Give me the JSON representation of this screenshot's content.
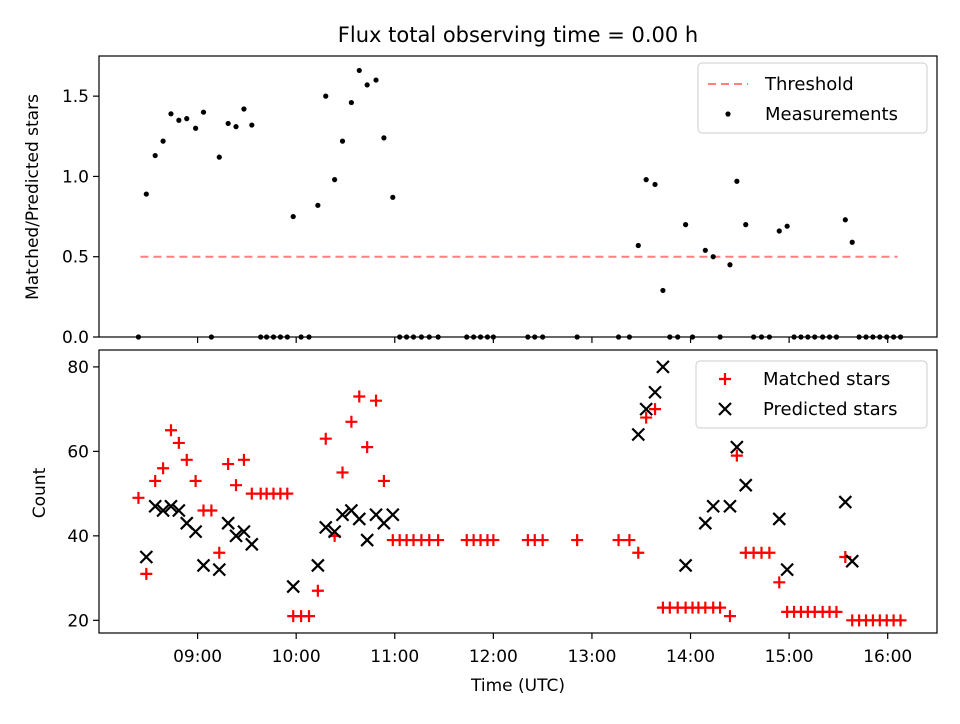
{
  "figure": {
    "title": "Flux total observing time = 0.00 h"
  },
  "colors": {
    "threshold": "#ff7f7f",
    "measurements": "#000000",
    "matched": "#ff0000",
    "predicted": "#000000"
  },
  "chart_data": [
    {
      "type": "scatter",
      "ylabel": "Matched/Predicted stars",
      "xlabel": "",
      "x_unit": "time (UTC, decimal hours)",
      "xlim": [
        8.0,
        16.5
      ],
      "ylim": [
        0.0,
        1.75
      ],
      "yticks": [
        0.0,
        0.5,
        1.0,
        1.5
      ],
      "ytick_labels": [
        "0.0",
        "0.5",
        "1.0",
        "1.5"
      ],
      "xticks": [
        9,
        10,
        11,
        12,
        13,
        14,
        15,
        16
      ],
      "grid": false,
      "legend": {
        "placement": "top-right",
        "entries": [
          "Threshold",
          "Measurements"
        ]
      },
      "series": [
        {
          "name": "Threshold",
          "style": "dashed-line",
          "x": [
            8.42,
            16.1
          ],
          "y": [
            0.5,
            0.5
          ]
        },
        {
          "name": "Measurements",
          "style": "dot",
          "x": [
            8.4,
            8.48,
            8.57,
            8.65,
            8.73,
            8.81,
            8.89,
            8.98,
            9.06,
            9.14,
            9.22,
            9.31,
            9.39,
            9.47,
            9.55,
            9.64,
            9.7,
            9.77,
            9.84,
            9.91,
            9.97,
            10.05,
            10.13,
            10.22,
            10.3,
            10.39,
            10.47,
            10.56,
            10.64,
            10.72,
            10.81,
            10.89,
            10.98,
            11.05,
            11.12,
            11.19,
            11.27,
            11.35,
            11.44,
            11.73,
            11.8,
            11.87,
            11.94,
            12.0,
            12.35,
            12.42,
            12.5,
            12.85,
            13.27,
            13.38,
            13.47,
            13.55,
            13.64,
            13.72,
            13.79,
            13.87,
            13.95,
            14.02,
            14.15,
            14.23,
            14.3,
            14.4,
            14.47,
            14.56,
            14.64,
            14.72,
            14.8,
            14.9,
            14.98,
            15.05,
            15.12,
            15.19,
            15.26,
            15.34,
            15.41,
            15.48,
            15.57,
            15.64,
            15.71,
            15.78,
            15.85,
            15.92,
            15.99,
            16.06,
            16.13
          ],
          "y": [
            0.0,
            0.89,
            1.13,
            1.22,
            1.39,
            1.35,
            1.36,
            1.3,
            1.4,
            0.0,
            1.12,
            1.33,
            1.31,
            1.42,
            1.32,
            0.0,
            0.0,
            0.0,
            0.0,
            0.0,
            0.75,
            0.0,
            0.0,
            0.82,
            1.5,
            0.98,
            1.22,
            1.46,
            1.66,
            1.57,
            1.6,
            1.24,
            0.87,
            0.0,
            0.0,
            0.0,
            0.0,
            0.0,
            0.0,
            0.0,
            0.0,
            0.0,
            0.0,
            0.0,
            0.0,
            0.0,
            0.0,
            0.0,
            0.0,
            0.0,
            0.57,
            0.98,
            0.95,
            0.29,
            0.0,
            0.0,
            0.7,
            0.0,
            0.54,
            0.5,
            0.0,
            0.45,
            0.97,
            0.7,
            0.0,
            0.0,
            0.0,
            0.66,
            0.69,
            0.0,
            0.0,
            0.0,
            0.0,
            0.0,
            0.0,
            0.0,
            0.73,
            0.59,
            0.0,
            0.0,
            0.0,
            0.0,
            0.0,
            0.0,
            0.0
          ]
        }
      ]
    },
    {
      "type": "scatter",
      "ylabel": "Count",
      "xlabel": "Time (UTC)",
      "x_unit": "time (UTC, decimal hours)",
      "xlim": [
        8.0,
        16.5
      ],
      "ylim": [
        17,
        84
      ],
      "yticks": [
        20,
        40,
        60,
        80
      ],
      "ytick_labels": [
        "20",
        "40",
        "60",
        "80"
      ],
      "xticks": [
        9,
        10,
        11,
        12,
        13,
        14,
        15,
        16
      ],
      "xtick_labels": [
        "09:00",
        "10:00",
        "11:00",
        "12:00",
        "13:00",
        "14:00",
        "15:00",
        "16:00"
      ],
      "grid": false,
      "legend": {
        "placement": "top-right",
        "entries": [
          "Matched stars",
          "Predicted stars"
        ]
      },
      "series": [
        {
          "name": "Matched stars",
          "style": "plus",
          "x": [
            8.4,
            8.48,
            8.57,
            8.65,
            8.73,
            8.81,
            8.89,
            8.98,
            9.06,
            9.14,
            9.22,
            9.31,
            9.39,
            9.47,
            9.55,
            9.64,
            9.7,
            9.77,
            9.84,
            9.91,
            9.97,
            10.05,
            10.13,
            10.22,
            10.3,
            10.39,
            10.47,
            10.56,
            10.64,
            10.72,
            10.81,
            10.89,
            10.98,
            11.05,
            11.12,
            11.19,
            11.27,
            11.35,
            11.44,
            11.73,
            11.8,
            11.87,
            11.94,
            12.0,
            12.35,
            12.42,
            12.5,
            12.85,
            13.27,
            13.38,
            13.47,
            13.55,
            13.64,
            13.72,
            13.79,
            13.87,
            13.95,
            14.02,
            14.08,
            14.15,
            14.23,
            14.3,
            14.4,
            14.47,
            14.56,
            14.64,
            14.72,
            14.8,
            14.9,
            14.98,
            15.05,
            15.12,
            15.19,
            15.26,
            15.34,
            15.41,
            15.48,
            15.57,
            15.64,
            15.71,
            15.78,
            15.85,
            15.92,
            15.99,
            16.06,
            16.13
          ],
          "y": [
            49,
            31,
            53,
            56,
            65,
            62,
            58,
            53,
            46,
            46,
            36,
            57,
            52,
            58,
            50,
            50,
            50,
            50,
            50,
            50,
            21,
            21,
            21,
            27,
            63,
            40,
            55,
            67,
            73,
            61,
            72,
            53,
            39,
            39,
            39,
            39,
            39,
            39,
            39,
            39,
            39,
            39,
            39,
            39,
            39,
            39,
            39,
            39,
            39,
            39,
            36,
            68,
            70,
            23,
            23,
            23,
            23,
            23,
            23,
            23,
            23,
            23,
            21,
            59,
            36,
            36,
            36,
            36,
            29,
            22,
            22,
            22,
            22,
            22,
            22,
            22,
            22,
            35,
            20,
            20,
            20,
            20,
            20,
            20,
            20,
            20
          ]
        },
        {
          "name": "Predicted stars",
          "style": "x",
          "x": [
            8.48,
            8.57,
            8.65,
            8.73,
            8.81,
            8.89,
            8.98,
            9.06,
            9.22,
            9.31,
            9.39,
            9.47,
            9.55,
            9.97,
            10.22,
            10.3,
            10.39,
            10.47,
            10.56,
            10.64,
            10.72,
            10.81,
            10.89,
            10.98,
            13.47,
            13.55,
            13.64,
            13.72,
            13.95,
            14.15,
            14.23,
            14.4,
            14.47,
            14.56,
            14.9,
            14.98,
            15.57,
            15.64
          ],
          "y": [
            35,
            47,
            46,
            47,
            46,
            43,
            41,
            33,
            32,
            43,
            40,
            41,
            38,
            28,
            33,
            42,
            41,
            45,
            46,
            44,
            39,
            45,
            43,
            45,
            64,
            70,
            74,
            80,
            33,
            43,
            47,
            47,
            61,
            52,
            44,
            32,
            48,
            34
          ]
        }
      ]
    }
  ]
}
